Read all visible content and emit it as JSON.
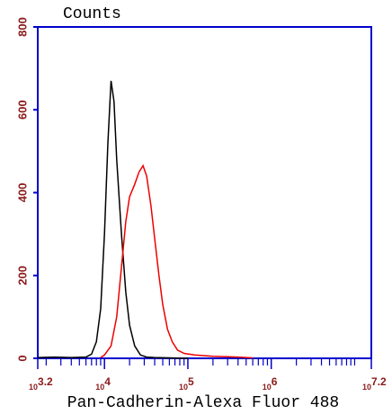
{
  "chart_data": {
    "type": "line",
    "ylabel": "Counts",
    "xlabel": "Pan-Cadherin-Alexa Fluor 488",
    "xscale": "log",
    "xlim": [
      1584.89,
      15848932
    ],
    "ylim": [
      0,
      800
    ],
    "yticks": [
      0,
      200,
      400,
      600,
      800
    ],
    "xticks": [
      {
        "value": 1584.89,
        "label": [
          "10",
          "3.2"
        ]
      },
      {
        "value": 10000,
        "label": [
          "10",
          "4"
        ]
      },
      {
        "value": 100000,
        "label": [
          "10",
          "5"
        ]
      },
      {
        "value": 1000000,
        "label": [
          "10",
          "6"
        ]
      },
      {
        "value": 15848932,
        "label": [
          "10",
          "7.2"
        ]
      }
    ],
    "xminorticks": [
      2000,
      3000,
      4000,
      5000,
      6000,
      7000,
      8000,
      9000,
      20000,
      30000,
      40000,
      50000,
      60000,
      70000,
      80000,
      90000,
      200000,
      300000,
      400000,
      500000,
      600000,
      700000,
      800000,
      900000,
      2000000,
      3000000,
      4000000,
      5000000,
      6000000,
      7000000,
      8000000,
      9000000,
      10000000
    ],
    "axis_color": "#0000cc",
    "series": [
      {
        "color": "#000000",
        "x": [
          1600,
          2500,
          4000,
          6000,
          7000,
          8000,
          9000,
          10000,
          11000,
          12000,
          13000,
          14000,
          16000,
          18000,
          20000,
          23000,
          27000,
          32000,
          40000,
          60000,
          100000
        ],
        "values": [
          2,
          3,
          2,
          3,
          10,
          40,
          120,
          300,
          520,
          670,
          620,
          480,
          300,
          160,
          80,
          30,
          8,
          3,
          2,
          1,
          0
        ]
      },
      {
        "color": "#ee0000",
        "x": [
          9000,
          10000,
          12000,
          14000,
          16000,
          18000,
          20000,
          23000,
          26000,
          29000,
          32000,
          36000,
          40000,
          45000,
          50000,
          57000,
          65000,
          75000,
          90000,
          120000,
          200000,
          400000,
          600000
        ],
        "values": [
          2,
          8,
          30,
          100,
          220,
          330,
          390,
          420,
          450,
          465,
          440,
          370,
          290,
          200,
          130,
          70,
          40,
          20,
          12,
          8,
          5,
          3,
          1
        ]
      }
    ]
  }
}
